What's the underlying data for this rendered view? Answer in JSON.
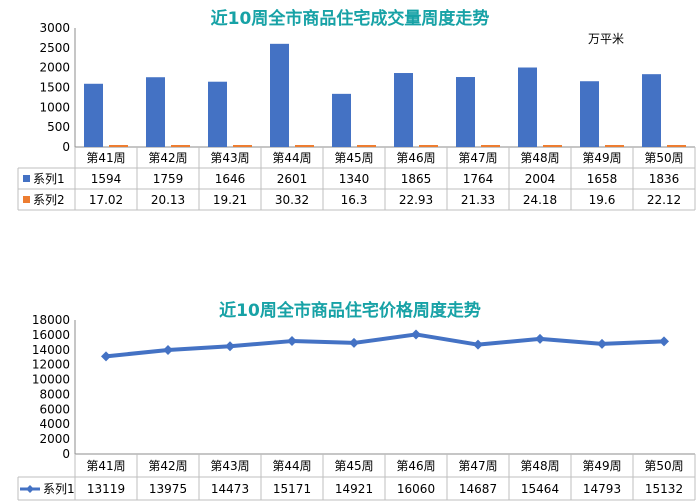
{
  "chart_data": [
    {
      "type": "bar",
      "title": "近10周全市商品住宅成交量周度走势",
      "unit": "万平米",
      "categories": [
        "第41周",
        "第42周",
        "第43周",
        "第44周",
        "第45周",
        "第46周",
        "第47周",
        "第48周",
        "第49周",
        "第50周"
      ],
      "series": [
        {
          "name": "系列1",
          "color": "#4472c4",
          "values": [
            1594,
            1759,
            1646,
            2601,
            1340,
            1865,
            1764,
            2004,
            1658,
            1836
          ]
        },
        {
          "name": "系列2",
          "color": "#ed7d31",
          "values": [
            17.02,
            20.13,
            19.21,
            30.32,
            16.3,
            22.93,
            21.33,
            24.18,
            19.6,
            22.12
          ]
        }
      ],
      "ylim": [
        0,
        3000
      ],
      "yticks": [
        0,
        500,
        1000,
        1500,
        2000,
        2500,
        3000
      ],
      "grid": false,
      "legend": "data-table"
    },
    {
      "type": "line",
      "title": "近10周全市商品住宅价格周度走势",
      "categories": [
        "第41周",
        "第42周",
        "第43周",
        "第44周",
        "第45周",
        "第46周",
        "第47周",
        "第48周",
        "第49周",
        "第50周"
      ],
      "series": [
        {
          "name": "系列1",
          "color": "#4472c4",
          "values": [
            13119,
            13975,
            14473,
            15171,
            14921,
            16060,
            14687,
            15464,
            14793,
            15132
          ]
        }
      ],
      "ylim": [
        0,
        18000
      ],
      "yticks": [
        0,
        2000,
        4000,
        6000,
        8000,
        10000,
        12000,
        14000,
        16000,
        18000
      ],
      "grid": false,
      "legend": "data-table"
    }
  ]
}
